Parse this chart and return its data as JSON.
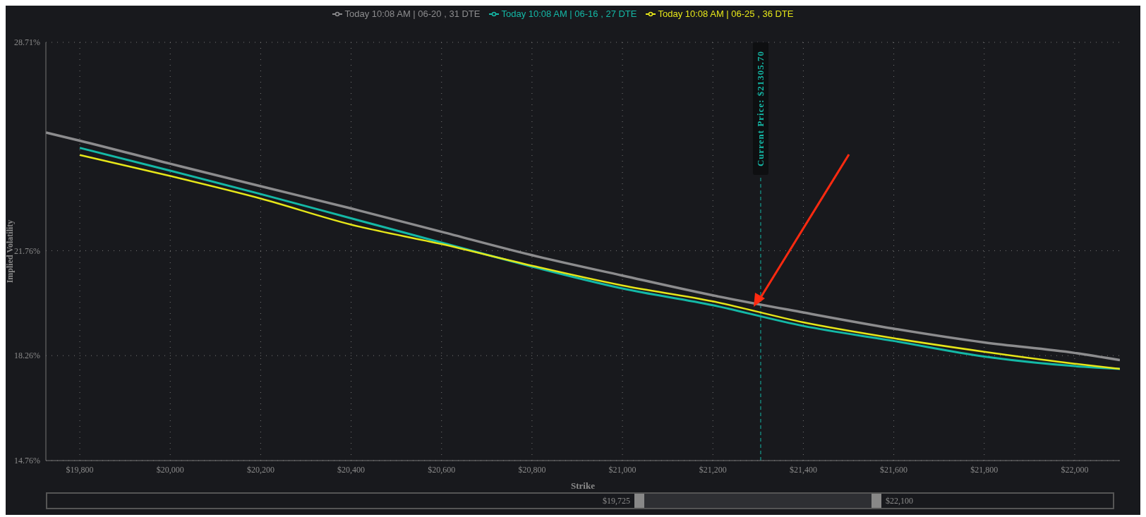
{
  "chart_data": {
    "type": "line",
    "xlabel": "Strike",
    "ylabel": "Implied Volatility",
    "x": [
      19725,
      19800,
      20000,
      20200,
      20400,
      20600,
      20800,
      21000,
      21200,
      21400,
      21600,
      21800,
      22000,
      22100
    ],
    "series": [
      {
        "name": "Today 10:08 AM | 06-20 , 31 DTE",
        "color": "#8c8c8e",
        "values": [
          25.7,
          25.43,
          24.66,
          23.91,
          23.17,
          22.39,
          21.61,
          20.93,
          20.27,
          19.7,
          19.16,
          18.7,
          18.35,
          18.11
        ]
      },
      {
        "name": "Today 10:08 AM | 06-16 , 27 DTE",
        "color": "#14b8a6",
        "values": [
          null,
          25.19,
          24.43,
          23.65,
          22.84,
          22.03,
          21.23,
          20.5,
          19.94,
          19.25,
          18.75,
          18.23,
          17.91,
          17.82
        ]
      },
      {
        "name": "Today 10:08 AM | 06-25 , 36 DTE",
        "color": "#e6e619",
        "values": [
          null,
          24.95,
          24.25,
          23.5,
          22.63,
          21.98,
          21.26,
          20.6,
          20.07,
          19.37,
          18.84,
          18.39,
          17.99,
          17.82
        ]
      }
    ],
    "xlim": [
      19725,
      22100
    ],
    "xticks": [
      {
        "value": 19800,
        "label": "$19,800"
      },
      {
        "value": 20000,
        "label": "$20,000"
      },
      {
        "value": 20200,
        "label": "$20,200"
      },
      {
        "value": 20400,
        "label": "$20,400"
      },
      {
        "value": 20600,
        "label": "$20,600"
      },
      {
        "value": 20800,
        "label": "$20,800"
      },
      {
        "value": 21000,
        "label": "$21,000"
      },
      {
        "value": 21200,
        "label": "$21,200"
      },
      {
        "value": 21400,
        "label": "$21,400"
      },
      {
        "value": 21600,
        "label": "$21,600"
      },
      {
        "value": 21800,
        "label": "$21,800"
      },
      {
        "value": 22000,
        "label": "$22,000"
      }
    ],
    "ylim": [
      14.76,
      28.71
    ],
    "yticks": [
      {
        "value": 14.76,
        "label": "14.76%"
      },
      {
        "value": 18.26,
        "label": "18.26%"
      },
      {
        "value": 21.76,
        "label": "21.76%"
      },
      {
        "value": 28.71,
        "label": "28.71%"
      }
    ],
    "ref_lines": [
      {
        "axis": "x",
        "value": 21305.7,
        "label": "Current Price: $21305.70",
        "color": "#14b8a6",
        "line_style": "dashed"
      }
    ],
    "annotations": [
      "$19,725",
      "$22,100"
    ],
    "grid": true,
    "legend": "top",
    "line_style": "solid"
  }
}
